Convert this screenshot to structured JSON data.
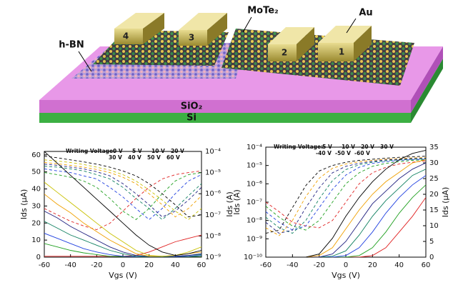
{
  "illustration": {
    "labels": {
      "mote2": "MoTe₂",
      "au": "Au",
      "hbn": "h-BN",
      "sio2": "SiO₂",
      "si": "Si"
    },
    "electrodes": [
      "4",
      "3",
      "2",
      "1"
    ]
  },
  "chart_data": [
    {
      "type": "line",
      "legend_title": "Writing Voltage:",
      "xlabel": "Vgs (V)",
      "ylabel": "Ids (μA)",
      "y2label": "Ids (A)",
      "x": [
        -60,
        -50,
        -40,
        -30,
        -20,
        -10,
        0,
        10,
        20,
        30,
        40,
        50,
        60
      ],
      "xlim": [
        -60,
        60
      ],
      "xticks": [
        -60,
        -40,
        -20,
        0,
        20,
        40,
        60
      ],
      "ylim": [
        0,
        62
      ],
      "yticks": [
        0,
        10,
        20,
        30,
        40,
        50,
        60
      ],
      "ylog": false,
      "y2lim": [
        1e-09,
        0.0001
      ],
      "y2log": true,
      "y2ticks": [
        {
          "value": 1e-09,
          "label": "10⁻⁹"
        },
        {
          "value": 1e-08,
          "label": "10⁻⁸"
        },
        {
          "value": 1e-07,
          "label": "10⁻⁷"
        },
        {
          "value": 1e-06,
          "label": "10⁻⁶"
        },
        {
          "value": 1e-05,
          "label": "10⁻⁵"
        },
        {
          "value": 0.0001,
          "label": "10⁻⁴"
        }
      ],
      "dashed_axis": "y2",
      "series": [
        {
          "name": "0 V",
          "color": "#e02020",
          "values": [
            0.5,
            0.5,
            0.5,
            0.5,
            0.5,
            0.5,
            0.5,
            1,
            3,
            6,
            9,
            11,
            13
          ],
          "y2_values": [
            2e-07,
            1e-07,
            5e-08,
            3e-08,
            2e-08,
            4e-08,
            1.5e-07,
            6e-07,
            2e-06,
            5e-06,
            8e-06,
            1e-05,
            1.2e-05
          ]
        },
        {
          "name": "5 V",
          "color": "#20a020",
          "values": [
            8,
            6,
            4,
            2.5,
            1.5,
            0.5,
            0.3,
            0.3,
            0.3,
            0.3,
            0.3,
            0.3,
            0.5
          ],
          "y2_values": [
            1e-05,
            8e-06,
            6e-06,
            4e-06,
            2e-06,
            6e-07,
            1.5e-07,
            6e-08,
            2e-07,
            1e-06,
            4e-06,
            8e-06,
            1e-05
          ]
        },
        {
          "name": "10 V",
          "color": "#2040e0",
          "values": [
            14,
            11,
            8,
            5,
            3,
            1.5,
            0.5,
            0.3,
            0.3,
            0.3,
            0.3,
            0.5,
            1
          ],
          "y2_values": [
            1.5e-05,
            1.2e-05,
            1e-05,
            7e-06,
            5e-06,
            2e-06,
            7e-07,
            2e-07,
            6e-08,
            2e-07,
            1e-06,
            4e-06,
            8e-06
          ]
        },
        {
          "name": "20 V",
          "color": "#108060",
          "values": [
            21,
            17,
            13,
            10,
            7,
            4,
            2,
            0.5,
            0.3,
            0.3,
            0.5,
            1,
            1.5
          ],
          "y2_values": [
            2e-05,
            1.8e-05,
            1.5e-05,
            1.2e-05,
            8e-06,
            5e-06,
            2e-06,
            6e-07,
            2e-07,
            6e-08,
            2e-07,
            8e-07,
            3e-06
          ]
        },
        {
          "name": "30 V",
          "color": "#202080",
          "values": [
            27,
            23,
            18,
            14,
            10,
            6,
            3,
            1,
            0.5,
            0.5,
            0.5,
            1,
            2
          ],
          "y2_values": [
            2.5e-05,
            2.2e-05,
            1.8e-05,
            1.5e-05,
            1.1e-05,
            7e-06,
            3e-06,
            1e-06,
            3e-07,
            8e-08,
            1.5e-07,
            5e-07,
            2e-06
          ]
        },
        {
          "name": "40 V",
          "color": "#f0a000",
          "values": [
            37,
            31,
            26,
            20,
            15,
            10,
            6,
            2,
            0.5,
            0.5,
            1,
            2,
            3
          ],
          "y2_values": [
            3e-05,
            2.6e-05,
            2.2e-05,
            1.8e-05,
            1.4e-05,
            1e-05,
            6e-06,
            3e-06,
            1e-06,
            3e-07,
            8e-08,
            2e-07,
            8e-07
          ]
        },
        {
          "name": "50 V",
          "color": "#c8c000",
          "values": [
            44,
            38,
            32,
            26,
            20,
            14,
            9,
            4,
            1,
            0.5,
            1,
            3,
            6
          ],
          "y2_values": [
            4e-05,
            3.5e-05,
            3e-05,
            2.4e-05,
            1.8e-05,
            1.3e-05,
            8e-06,
            4e-06,
            1.5e-06,
            5e-07,
            1.5e-07,
            6e-08,
            2e-07
          ]
        },
        {
          "name": "60 V",
          "color": "#000000",
          "values": [
            62,
            55,
            48,
            41,
            34,
            27,
            20,
            13,
            7,
            3,
            1,
            2,
            4
          ],
          "y2_values": [
            6e-05,
            5e-05,
            4e-05,
            3.2e-05,
            2.5e-05,
            1.8e-05,
            1.2e-05,
            7e-06,
            3e-06,
            1e-06,
            3e-07,
            8e-08,
            1e-07
          ]
        }
      ]
    },
    {
      "type": "line",
      "legend_title": "Writing Voltage:",
      "xlabel": "Vgs (V)",
      "ylabel": "Ids (A)",
      "y2label": "Ids (μA)",
      "x": [
        -60,
        -50,
        -40,
        -30,
        -20,
        -10,
        0,
        10,
        20,
        30,
        40,
        50,
        60
      ],
      "xlim": [
        -60,
        60
      ],
      "xticks": [
        -60,
        -40,
        -20,
        0,
        20,
        40,
        60
      ],
      "ylim": [
        1e-10,
        0.0001
      ],
      "ylog": true,
      "yticks": [
        {
          "value": 1e-10,
          "label": "10⁻¹⁰"
        },
        {
          "value": 1e-09,
          "label": "10⁻⁹"
        },
        {
          "value": 1e-08,
          "label": "10⁻⁸"
        },
        {
          "value": 1e-07,
          "label": "10⁻⁷"
        },
        {
          "value": 1e-06,
          "label": "10⁻⁶"
        },
        {
          "value": 1e-05,
          "label": "10⁻⁵"
        },
        {
          "value": 0.0001,
          "label": "10⁻⁴"
        }
      ],
      "y2lim": [
        0,
        35
      ],
      "y2log": false,
      "y2ticks": [
        0,
        5,
        10,
        15,
        20,
        25,
        30,
        35
      ],
      "dashed_axis": "y",
      "series": [
        {
          "name": "-5 V",
          "color": "#e02020",
          "values": [
            1e-07,
            3e-08,
            8e-09,
            5e-09,
            4e-09,
            1e-08,
            1e-07,
            1e-06,
            4e-06,
            8e-06,
            1.2e-05,
            1.5e-05,
            1.8e-05
          ],
          "y2_values": [
            0,
            0,
            0,
            0,
            0,
            0,
            0,
            0,
            0.5,
            3,
            8,
            13,
            19
          ]
        },
        {
          "name": "-10 V",
          "color": "#20a020",
          "values": [
            6e-08,
            1.5e-08,
            5e-09,
            3e-09,
            1e-08,
            1e-07,
            1e-06,
            4e-06,
            9e-06,
            1.3e-05,
            1.6e-05,
            1.9e-05,
            2e-05
          ],
          "y2_values": [
            0,
            0,
            0,
            0,
            0,
            0,
            0,
            0.5,
            3,
            8,
            14,
            19,
            23
          ]
        },
        {
          "name": "-20 V",
          "color": "#2040e0",
          "values": [
            3e-08,
            8e-09,
            3e-09,
            5e-09,
            5e-08,
            5e-07,
            3e-06,
            8e-06,
            1.3e-05,
            1.6e-05,
            1.9e-05,
            2.1e-05,
            2.2e-05
          ],
          "y2_values": [
            0,
            0,
            0,
            0,
            0,
            0,
            0.5,
            3,
            8,
            14,
            19,
            23,
            26
          ]
        },
        {
          "name": "-30 V",
          "color": "#108060",
          "values": [
            1.5e-08,
            4e-09,
            2e-09,
            1e-08,
            1.5e-07,
            1.5e-06,
            6e-06,
            1.1e-05,
            1.5e-05,
            1.8e-05,
            2e-05,
            2.2e-05,
            2.3e-05
          ],
          "y2_values": [
            0,
            0,
            0,
            0,
            0,
            0.3,
            2,
            7,
            13,
            18,
            22,
            26,
            28
          ]
        },
        {
          "name": "-40 V",
          "color": "#202080",
          "values": [
            8e-09,
            2e-09,
            3e-09,
            5e-08,
            6e-07,
            4e-06,
            9e-06,
            1.3e-05,
            1.7e-05,
            2e-05,
            2.2e-05,
            2.4e-05,
            2.5e-05
          ],
          "y2_values": [
            0,
            0,
            0,
            0,
            0,
            1,
            5,
            11,
            17,
            21,
            25,
            28,
            30
          ]
        },
        {
          "name": "-50 V",
          "color": "#f0a000",
          "values": [
            4e-09,
            1.5e-09,
            1e-08,
            2e-07,
            2e-06,
            7e-06,
            1.2e-05,
            1.6e-05,
            1.9e-05,
            2.2e-05,
            2.4e-05,
            2.6e-05,
            2.7e-05
          ],
          "y2_values": [
            0,
            0,
            0,
            0,
            0.5,
            3,
            9,
            15,
            20,
            24,
            27,
            30,
            31
          ]
        },
        {
          "name": "-60 V",
          "color": "#000000",
          "values": [
            2e-09,
            3e-09,
            5e-08,
            8e-07,
            5e-06,
            1e-05,
            1.5e-05,
            1.9e-05,
            2.2e-05,
            2.5e-05,
            2.8e-05,
            3e-05,
            3.2e-05
          ],
          "y2_values": [
            0,
            0,
            0,
            0,
            1,
            6,
            13,
            19,
            24,
            28,
            31,
            33,
            34
          ]
        }
      ]
    }
  ]
}
